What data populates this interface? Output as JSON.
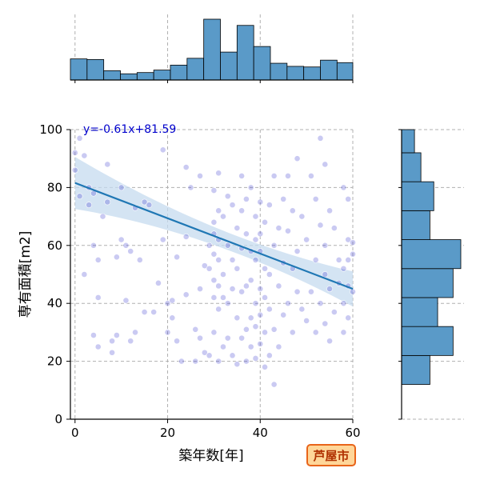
{
  "chart_data": {
    "type": "scatter",
    "xlabel": "築年数[年]",
    "ylabel": "専有面積[m2]",
    "xlim": [
      -1,
      60
    ],
    "ylim": [
      0,
      100
    ],
    "xticks": [
      0,
      20,
      40,
      60
    ],
    "yticks": [
      0,
      20,
      40,
      60,
      80,
      100
    ],
    "grid": true,
    "regression": {
      "label": "y=-0.61x+81.59",
      "slope": -0.61,
      "intercept": 81.59
    },
    "badge": "芦屋市",
    "colors": {
      "points": "#3f3fcf",
      "line": "#1f77b4",
      "hist": "#5a9ac8",
      "band": "#c6dbef",
      "badge_fill": "#ffd699",
      "badge_stroke": "#e8641a"
    },
    "x_histogram": {
      "bin_edges": [
        -1,
        2.6,
        6.2,
        9.8,
        13.4,
        17,
        20.6,
        24.2,
        27.8,
        31.4,
        35,
        38.6,
        42.2,
        45.8,
        49.4,
        53,
        56.6,
        60.2
      ],
      "counts": [
        34,
        33,
        15,
        10,
        12,
        16,
        24,
        35,
        98,
        45,
        88,
        54,
        27,
        22,
        21,
        32,
        28
      ]
    },
    "y_histogram": {
      "bin_edges": [
        12,
        22,
        32,
        42,
        52,
        62,
        72,
        82,
        92,
        102
      ],
      "counts": [
        22,
        40,
        28,
        40,
        46,
        22,
        25,
        15,
        10
      ]
    },
    "points": [
      [
        0,
        92
      ],
      [
        0,
        86
      ],
      [
        1,
        97
      ],
      [
        1,
        77
      ],
      [
        2,
        91
      ],
      [
        2,
        50
      ],
      [
        3,
        80
      ],
      [
        3,
        74
      ],
      [
        4,
        78
      ],
      [
        4,
        60
      ],
      [
        4,
        29
      ],
      [
        5,
        55
      ],
      [
        5,
        42
      ],
      [
        5,
        25
      ],
      [
        6,
        70
      ],
      [
        7,
        88
      ],
      [
        7,
        75
      ],
      [
        8,
        27
      ],
      [
        8,
        23
      ],
      [
        9,
        56
      ],
      [
        9,
        29
      ],
      [
        10,
        62
      ],
      [
        10,
        80
      ],
      [
        11,
        41
      ],
      [
        11,
        60
      ],
      [
        12,
        58
      ],
      [
        12,
        27
      ],
      [
        13,
        73
      ],
      [
        13,
        30
      ],
      [
        14,
        55
      ],
      [
        15,
        75
      ],
      [
        15,
        37
      ],
      [
        16,
        74
      ],
      [
        17,
        37
      ],
      [
        18,
        47
      ],
      [
        19,
        93
      ],
      [
        19,
        62
      ],
      [
        20,
        40
      ],
      [
        20,
        30
      ],
      [
        21,
        41
      ],
      [
        21,
        35
      ],
      [
        22,
        56
      ],
      [
        22,
        27
      ],
      [
        23,
        20
      ],
      [
        24,
        87
      ],
      [
        24,
        63
      ],
      [
        24,
        43
      ],
      [
        25,
        80
      ],
      [
        26,
        20
      ],
      [
        26,
        31
      ],
      [
        27,
        84
      ],
      [
        27,
        45
      ],
      [
        27,
        28
      ],
      [
        28,
        53
      ],
      [
        28,
        23
      ],
      [
        29,
        60
      ],
      [
        29,
        52
      ],
      [
        29,
        22
      ],
      [
        30,
        79
      ],
      [
        30,
        68
      ],
      [
        30,
        64
      ],
      [
        30,
        57
      ],
      [
        30,
        48
      ],
      [
        30,
        42
      ],
      [
        30,
        30
      ],
      [
        31,
        85
      ],
      [
        31,
        72
      ],
      [
        31,
        62
      ],
      [
        31,
        55
      ],
      [
        31,
        46
      ],
      [
        31,
        38
      ],
      [
        31,
        20
      ],
      [
        32,
        70
      ],
      [
        32,
        50
      ],
      [
        32,
        42
      ],
      [
        32,
        25
      ],
      [
        33,
        77
      ],
      [
        33,
        60
      ],
      [
        33,
        40
      ],
      [
        33,
        28
      ],
      [
        34,
        74
      ],
      [
        34,
        55
      ],
      [
        34,
        45
      ],
      [
        34,
        22
      ],
      [
        35,
        66
      ],
      [
        35,
        52
      ],
      [
        35,
        35
      ],
      [
        35,
        19
      ],
      [
        36,
        84
      ],
      [
        36,
        72
      ],
      [
        36,
        59
      ],
      [
        36,
        44
      ],
      [
        36,
        28
      ],
      [
        37,
        76
      ],
      [
        37,
        64
      ],
      [
        37,
        46
      ],
      [
        37,
        31
      ],
      [
        37,
        20
      ],
      [
        38,
        80
      ],
      [
        38,
        58
      ],
      [
        38,
        48
      ],
      [
        38,
        35
      ],
      [
        38,
        25
      ],
      [
        39,
        70
      ],
      [
        39,
        62
      ],
      [
        39,
        55
      ],
      [
        39,
        40
      ],
      [
        39,
        32
      ],
      [
        39,
        21
      ],
      [
        40,
        75
      ],
      [
        40,
        64
      ],
      [
        40,
        58
      ],
      [
        40,
        45
      ],
      [
        40,
        36
      ],
      [
        40,
        26
      ],
      [
        41,
        68
      ],
      [
        41,
        52
      ],
      [
        41,
        42
      ],
      [
        41,
        30
      ],
      [
        41,
        18
      ],
      [
        42,
        74
      ],
      [
        42,
        50
      ],
      [
        42,
        38
      ],
      [
        42,
        22
      ],
      [
        43,
        84
      ],
      [
        43,
        60
      ],
      [
        43,
        31
      ],
      [
        43,
        12
      ],
      [
        44,
        66
      ],
      [
        44,
        46
      ],
      [
        44,
        25
      ],
      [
        45,
        76
      ],
      [
        45,
        54
      ],
      [
        45,
        36
      ],
      [
        46,
        84
      ],
      [
        46,
        65
      ],
      [
        46,
        40
      ],
      [
        47,
        72
      ],
      [
        47,
        52
      ],
      [
        47,
        30
      ],
      [
        48,
        90
      ],
      [
        48,
        58
      ],
      [
        48,
        44
      ],
      [
        49,
        70
      ],
      [
        49,
        38
      ],
      [
        50,
        62
      ],
      [
        50,
        34
      ],
      [
        51,
        84
      ],
      [
        51,
        44
      ],
      [
        52,
        76
      ],
      [
        52,
        55
      ],
      [
        52,
        30
      ],
      [
        53,
        97
      ],
      [
        53,
        67
      ],
      [
        53,
        40
      ],
      [
        54,
        88
      ],
      [
        54,
        60
      ],
      [
        54,
        50
      ],
      [
        54,
        33
      ],
      [
        55,
        72
      ],
      [
        55,
        45
      ],
      [
        55,
        27
      ],
      [
        56,
        66
      ],
      [
        56,
        37
      ],
      [
        57,
        55
      ],
      [
        57,
        47
      ],
      [
        58,
        80
      ],
      [
        58,
        52
      ],
      [
        58,
        40
      ],
      [
        58,
        30
      ],
      [
        59,
        76
      ],
      [
        59,
        62
      ],
      [
        59,
        55
      ],
      [
        59,
        46
      ],
      [
        59,
        35
      ],
      [
        60,
        61
      ],
      [
        60,
        57
      ],
      [
        60,
        44
      ]
    ]
  }
}
